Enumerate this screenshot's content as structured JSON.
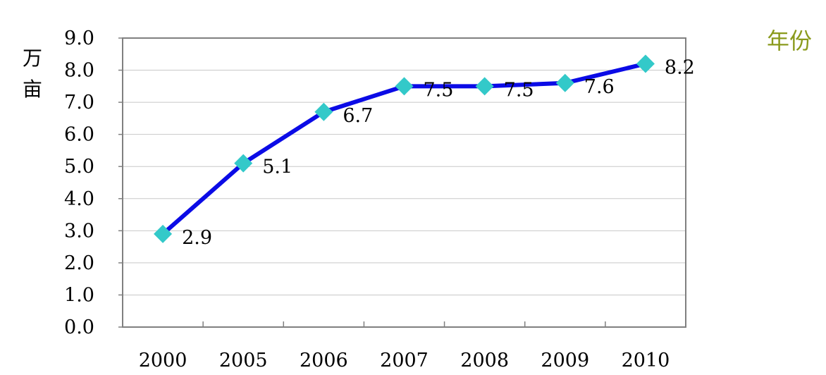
{
  "chart_data": {
    "type": "line",
    "ylabel": [
      "万",
      "亩"
    ],
    "xlabel": "年份",
    "categories": [
      "2000",
      "2005",
      "2006",
      "2007",
      "2008",
      "2009",
      "2010"
    ],
    "values": [
      2.9,
      5.1,
      6.7,
      7.5,
      7.5,
      7.6,
      8.2
    ],
    "data_labels": [
      "2.9",
      "5.1",
      "6.7",
      "7.5",
      "7.5",
      "7.6",
      "8.2"
    ],
    "y_ticks": [
      "0.0",
      "1.0",
      "2.0",
      "3.0",
      "4.0",
      "5.0",
      "6.0",
      "7.0",
      "8.0",
      "9.0"
    ],
    "ylim": [
      0,
      9
    ],
    "grid": true,
    "colors": {
      "line": "#0b0be6",
      "marker": "#33c9c9",
      "grid": "#c8c8c8",
      "xlabel": "#8a9a1c"
    }
  }
}
